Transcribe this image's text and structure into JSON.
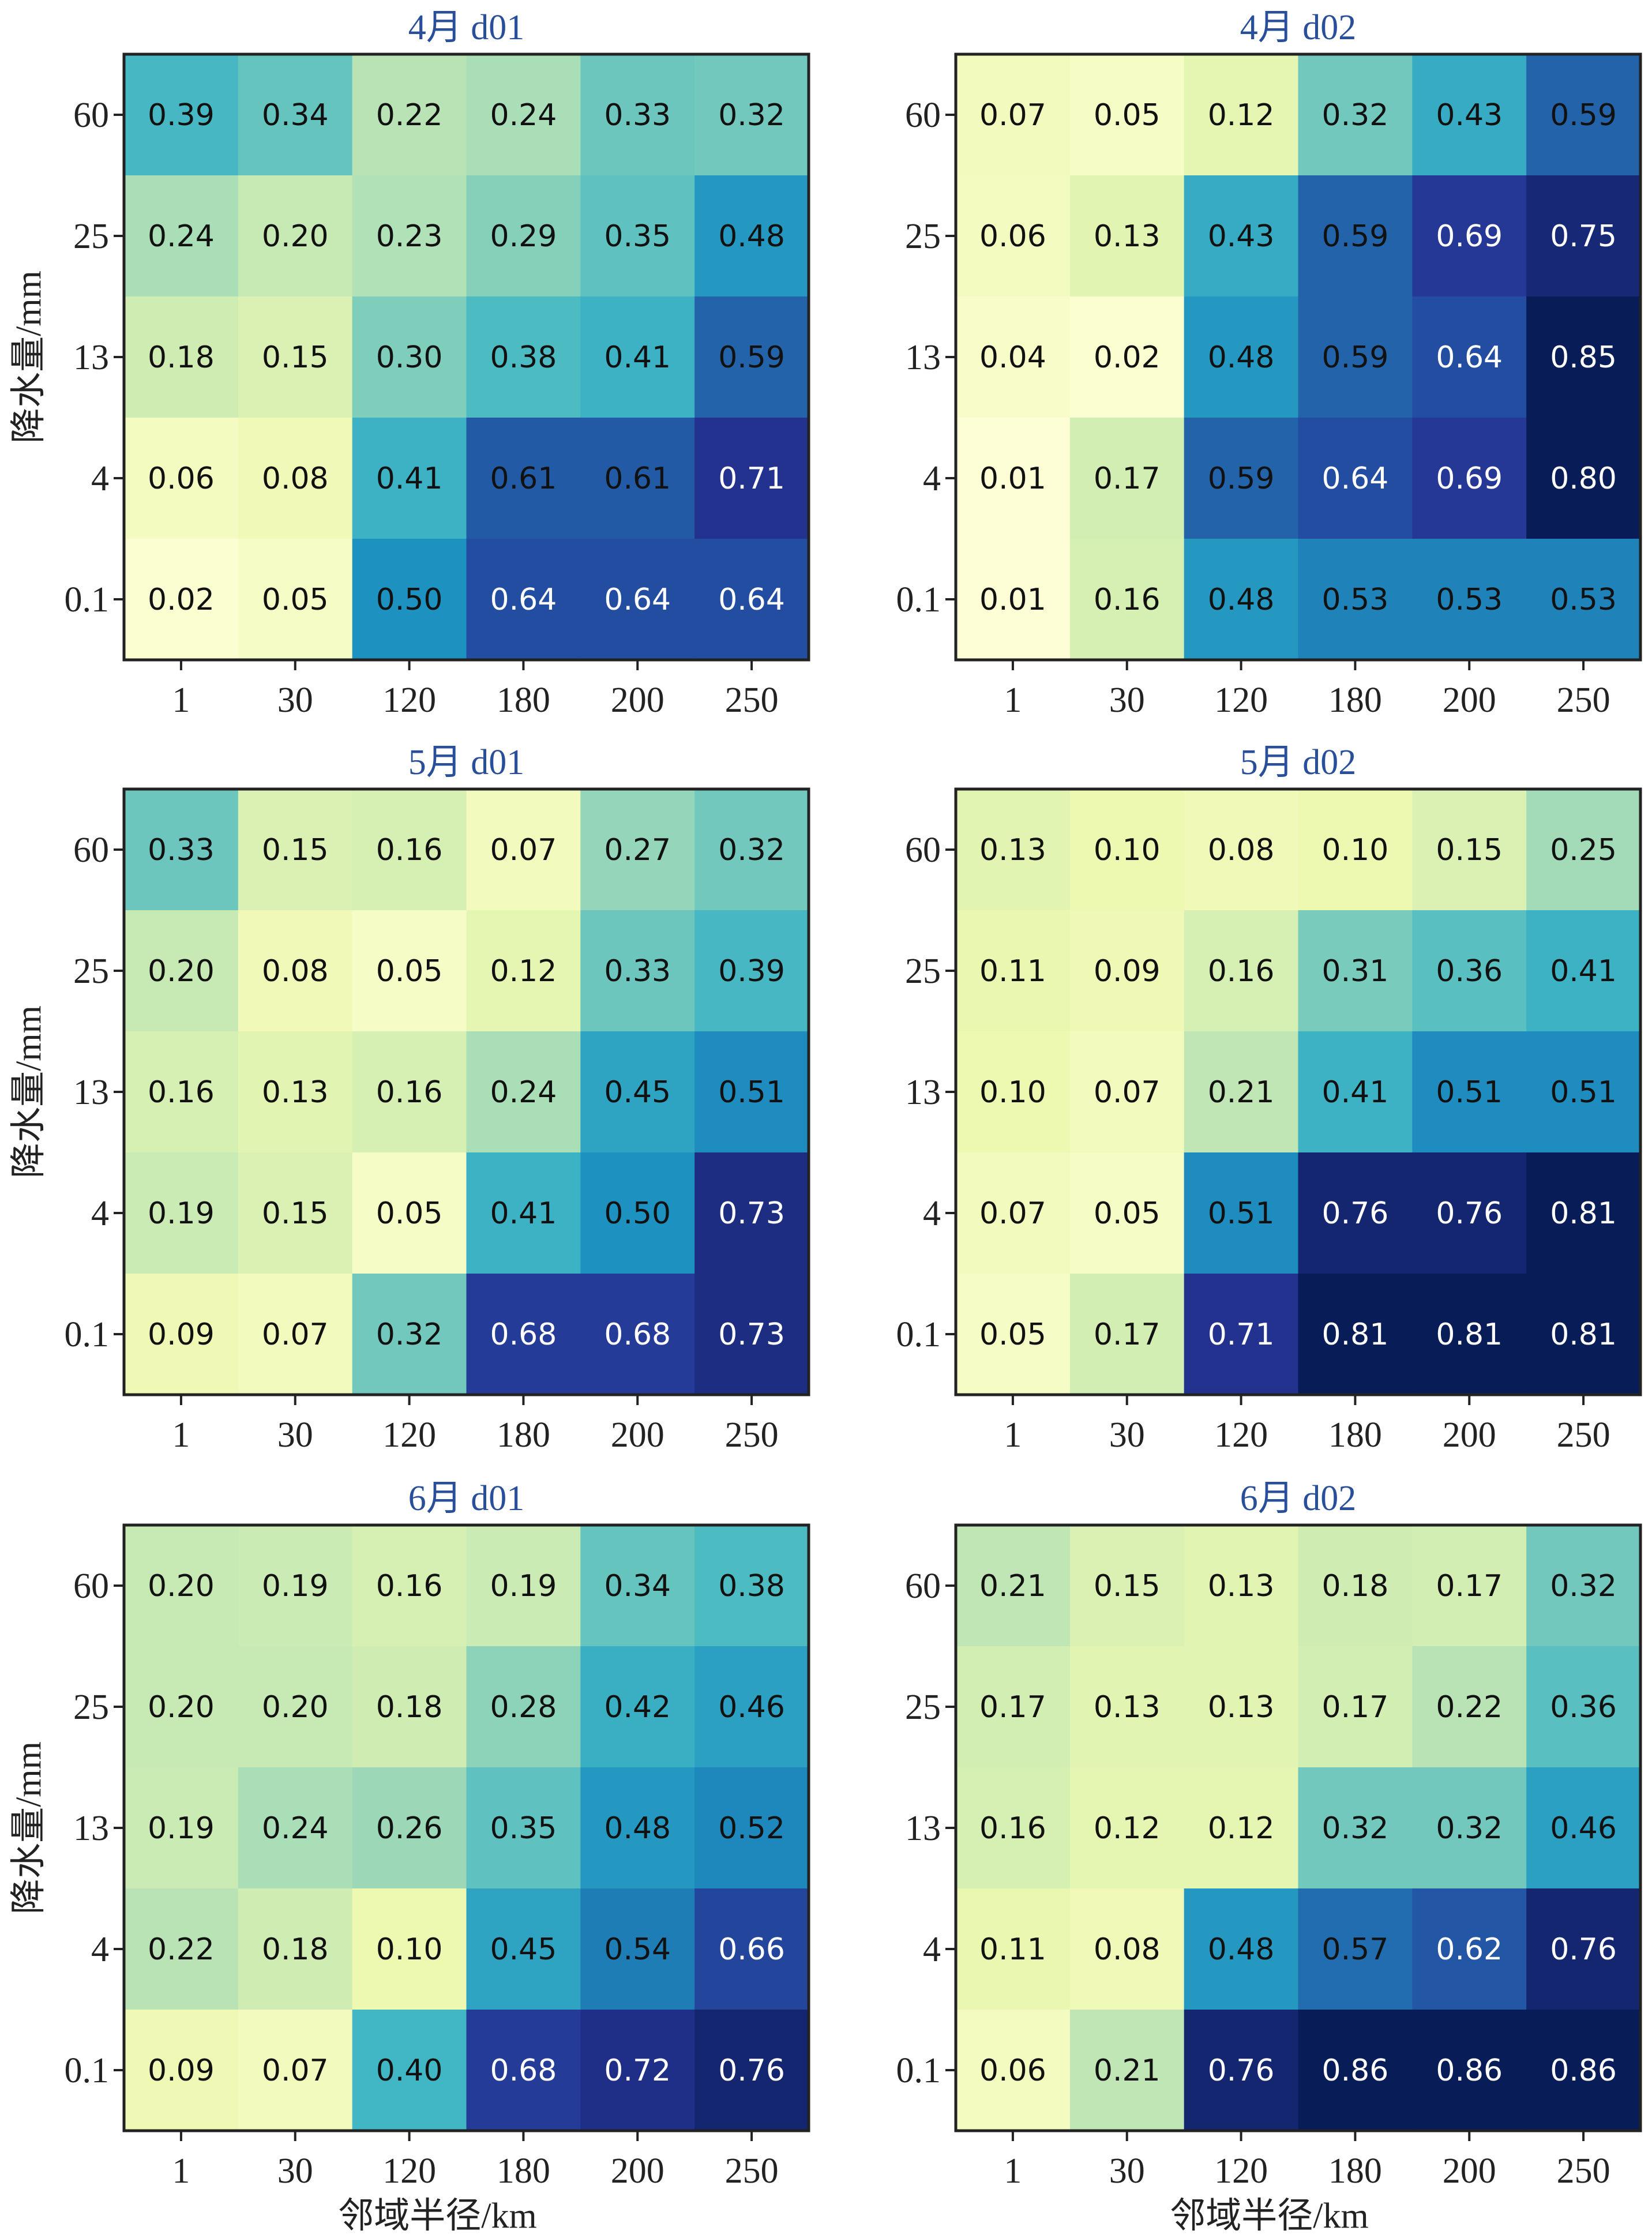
{
  "chart_data": {
    "type": "heatmap",
    "xlabel": "邻域半径/km",
    "ylabel": "降水量/mm",
    "x_categories": [
      "1",
      "30",
      "120",
      "180",
      "200",
      "250"
    ],
    "y_categories": [
      "60",
      "25",
      "13",
      "4",
      "0.1"
    ],
    "colormap": "YlGnBu",
    "panels": [
      {
        "title": "4月 d01",
        "values": [
          [
            0.39,
            0.34,
            0.22,
            0.24,
            0.33,
            0.32
          ],
          [
            0.24,
            0.2,
            0.23,
            0.29,
            0.35,
            0.48
          ],
          [
            0.18,
            0.15,
            0.3,
            0.38,
            0.41,
            0.59
          ],
          [
            0.06,
            0.08,
            0.41,
            0.61,
            0.61,
            0.71
          ],
          [
            0.02,
            0.05,
            0.5,
            0.64,
            0.64,
            0.64
          ]
        ]
      },
      {
        "title": "4月 d02",
        "values": [
          [
            0.07,
            0.05,
            0.12,
            0.32,
            0.43,
            0.59
          ],
          [
            0.06,
            0.13,
            0.43,
            0.59,
            0.69,
            0.75
          ],
          [
            0.04,
            0.02,
            0.48,
            0.59,
            0.64,
            0.85
          ],
          [
            0.01,
            0.17,
            0.59,
            0.64,
            0.69,
            0.8
          ],
          [
            0.01,
            0.16,
            0.48,
            0.53,
            0.53,
            0.53
          ]
        ]
      },
      {
        "title": "5月 d01",
        "values": [
          [
            0.33,
            0.15,
            0.16,
            0.07,
            0.27,
            0.32
          ],
          [
            0.2,
            0.08,
            0.05,
            0.12,
            0.33,
            0.39
          ],
          [
            0.16,
            0.13,
            0.16,
            0.24,
            0.45,
            0.51
          ],
          [
            0.19,
            0.15,
            0.05,
            0.41,
            0.5,
            0.73
          ],
          [
            0.09,
            0.07,
            0.32,
            0.68,
            0.68,
            0.73
          ]
        ]
      },
      {
        "title": "5月 d02",
        "values": [
          [
            0.13,
            0.1,
            0.08,
            0.1,
            0.15,
            0.25
          ],
          [
            0.11,
            0.09,
            0.16,
            0.31,
            0.36,
            0.41
          ],
          [
            0.1,
            0.07,
            0.21,
            0.41,
            0.51,
            0.51
          ],
          [
            0.07,
            0.05,
            0.51,
            0.76,
            0.76,
            0.81
          ],
          [
            0.05,
            0.17,
            0.71,
            0.81,
            0.81,
            0.81
          ]
        ]
      },
      {
        "title": "6月 d01",
        "values": [
          [
            0.2,
            0.19,
            0.16,
            0.19,
            0.34,
            0.38
          ],
          [
            0.2,
            0.2,
            0.18,
            0.28,
            0.42,
            0.46
          ],
          [
            0.19,
            0.24,
            0.26,
            0.35,
            0.48,
            0.52
          ],
          [
            0.22,
            0.18,
            0.1,
            0.45,
            0.54,
            0.66
          ],
          [
            0.09,
            0.07,
            0.4,
            0.68,
            0.72,
            0.76
          ]
        ]
      },
      {
        "title": "6月 d02",
        "values": [
          [
            0.21,
            0.15,
            0.13,
            0.18,
            0.17,
            0.32
          ],
          [
            0.17,
            0.13,
            0.13,
            0.17,
            0.22,
            0.36
          ],
          [
            0.16,
            0.12,
            0.12,
            0.32,
            0.32,
            0.46
          ],
          [
            0.11,
            0.08,
            0.48,
            0.57,
            0.62,
            0.76
          ],
          [
            0.06,
            0.21,
            0.76,
            0.86,
            0.86,
            0.86
          ]
        ]
      }
    ]
  }
}
